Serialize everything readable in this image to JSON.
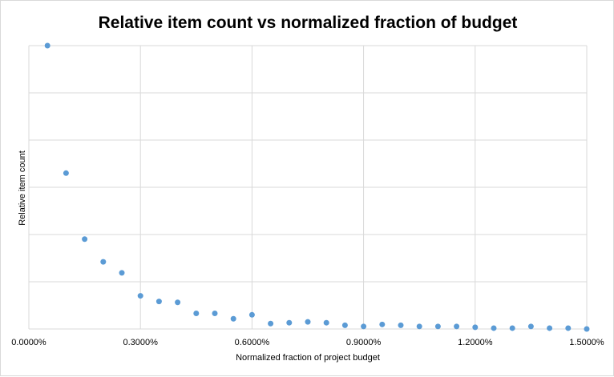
{
  "chart_data": {
    "type": "scatter",
    "title": "Relative item count vs normalized fraction of budget",
    "xlabel": "Normalized fraction of project budget",
    "ylabel": "Relative item count",
    "xlim": [
      0,
      0.015
    ],
    "ylim": [
      0,
      1
    ],
    "x_ticks": [
      {
        "value": 0,
        "label": "0.0000%"
      },
      {
        "value": 0.003,
        "label": "0.3000%"
      },
      {
        "value": 0.006,
        "label": "0.6000%"
      },
      {
        "value": 0.009,
        "label": "0.9000%"
      },
      {
        "value": 0.012,
        "label": "1.2000%"
      },
      {
        "value": 0.015,
        "label": "1.5000%"
      }
    ],
    "y_gridlines": [
      0,
      0.1667,
      0.3333,
      0.5,
      0.6667,
      0.8333,
      1
    ],
    "y_tick_labels_shown": false,
    "grid": true,
    "marker_color": "#5b9bd5",
    "series": [
      {
        "points": [
          {
            "x": 0.0005,
            "y": 1.0
          },
          {
            "x": 0.001,
            "y": 0.55
          },
          {
            "x": 0.0015,
            "y": 0.317
          },
          {
            "x": 0.002,
            "y": 0.237
          },
          {
            "x": 0.0025,
            "y": 0.198
          },
          {
            "x": 0.003,
            "y": 0.117
          },
          {
            "x": 0.0035,
            "y": 0.097
          },
          {
            "x": 0.004,
            "y": 0.094
          },
          {
            "x": 0.0045,
            "y": 0.055
          },
          {
            "x": 0.005,
            "y": 0.055
          },
          {
            "x": 0.0055,
            "y": 0.036
          },
          {
            "x": 0.006,
            "y": 0.05
          },
          {
            "x": 0.0065,
            "y": 0.019
          },
          {
            "x": 0.007,
            "y": 0.022
          },
          {
            "x": 0.0075,
            "y": 0.025
          },
          {
            "x": 0.008,
            "y": 0.022
          },
          {
            "x": 0.0085,
            "y": 0.013
          },
          {
            "x": 0.009,
            "y": 0.009
          },
          {
            "x": 0.0095,
            "y": 0.016
          },
          {
            "x": 0.01,
            "y": 0.013
          },
          {
            "x": 0.0105,
            "y": 0.009
          },
          {
            "x": 0.011,
            "y": 0.009
          },
          {
            "x": 0.0115,
            "y": 0.009
          },
          {
            "x": 0.012,
            "y": 0.006
          },
          {
            "x": 0.0125,
            "y": 0.003
          },
          {
            "x": 0.013,
            "y": 0.003
          },
          {
            "x": 0.0135,
            "y": 0.009
          },
          {
            "x": 0.014,
            "y": 0.003
          },
          {
            "x": 0.0145,
            "y": 0.003
          },
          {
            "x": 0.015,
            "y": 0.0
          }
        ]
      }
    ]
  }
}
